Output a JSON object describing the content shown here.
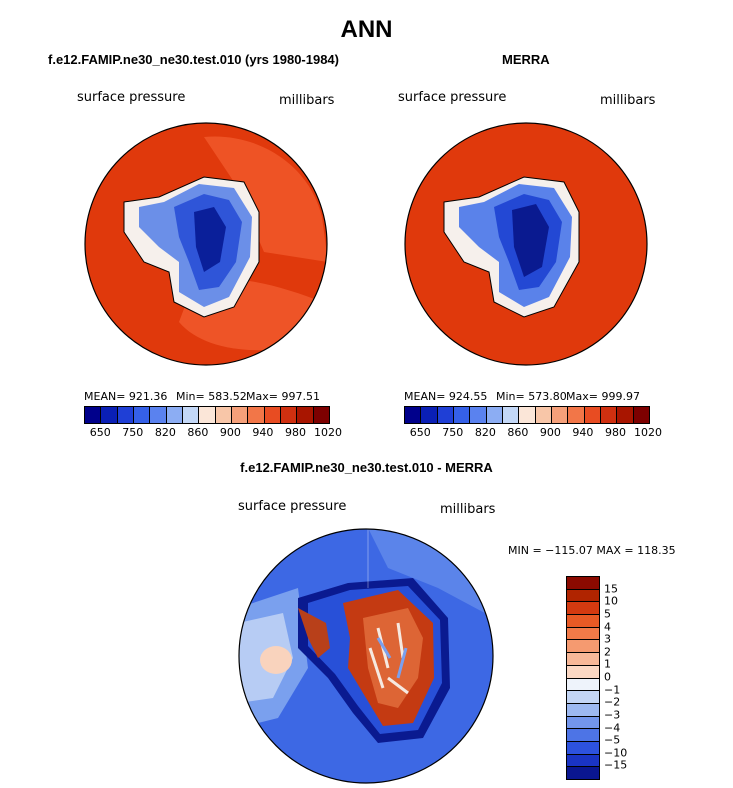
{
  "title": "ANN",
  "panels": [
    {
      "subtitle": "f.e12.FAMIP.ne30_ne30.test.010 (yrs 1980-1984)",
      "left_label": "surface pressure",
      "right_label": "millibars",
      "mean_text": "MEAN= 921.36",
      "min_text": "Min= 583.52",
      "max_text": "Max= 997.51"
    },
    {
      "subtitle": "MERRA",
      "left_label": "surface pressure",
      "right_label": "millibars",
      "mean_text": "MEAN= 924.55",
      "min_text": "Min= 573.80",
      "max_text": "Max= 999.97"
    }
  ],
  "colorbar": {
    "colors": [
      "#00008b",
      "#0a1fb5",
      "#1f3fd6",
      "#3560e8",
      "#5a82ef",
      "#8cadf3",
      "#c4d8f7",
      "#fbe6d8",
      "#f8c6a8",
      "#f5a07a",
      "#f27648",
      "#e84c22",
      "#d03010",
      "#a81500",
      "#7d0000"
    ],
    "tick_labels": [
      "650",
      "750",
      "820",
      "860",
      "900",
      "940",
      "980",
      "1020"
    ]
  },
  "diff_panel": {
    "subtitle": "f.e12.FAMIP.ne30_ne30.test.010 - MERRA",
    "left_label": "surface pressure",
    "right_label": "millibars",
    "minmax_text": "MIN = −115.07  MAX = 118.35"
  },
  "diff_colorbar": {
    "colors_top_to_bottom": [
      "#8b0a00",
      "#b02400",
      "#d43a10",
      "#e85a25",
      "#f27a48",
      "#f59a70",
      "#f8b898",
      "#fbd8c4",
      "#eef3fb",
      "#c4d6f5",
      "#9db9f1",
      "#7396ec",
      "#4d74e6",
      "#2d52de",
      "#1a34c4",
      "#0a1690"
    ],
    "tick_labels": [
      "15",
      "10",
      "5",
      "4",
      "3",
      "2",
      "1",
      "0",
      "−1",
      "−2",
      "−3",
      "−4",
      "−5",
      "−10",
      "−15"
    ]
  }
}
